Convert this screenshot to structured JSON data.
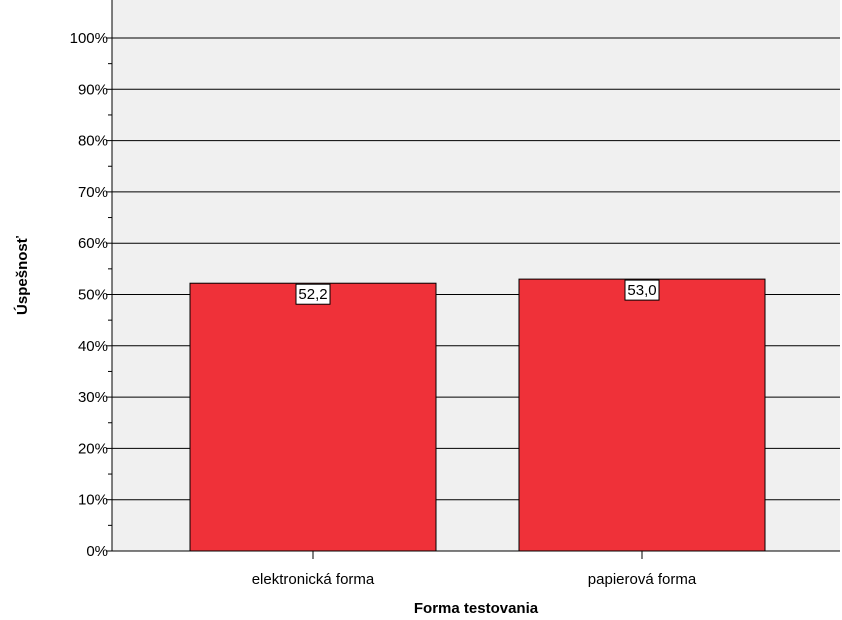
{
  "chart_data": {
    "type": "bar",
    "categories": [
      "elektronická forma",
      "papierová forma"
    ],
    "values": [
      52.2,
      53.0
    ],
    "data_labels": [
      "52,2",
      "53,0"
    ],
    "xlabel": "Forma testovania",
    "ylabel": "Úspešnosť",
    "ylim": [
      0,
      100
    ],
    "yticks": [
      0,
      10,
      20,
      30,
      40,
      50,
      60,
      70,
      80,
      90,
      100
    ],
    "ytick_labels": [
      "0%",
      "10%",
      "20%",
      "30%",
      "40%",
      "50%",
      "60%",
      "70%",
      "80%",
      "90%",
      "100%"
    ],
    "grid": true,
    "colors": {
      "bar": "#ef3139",
      "plot_background": "#f0f0f0",
      "gridline": "#000000"
    }
  }
}
